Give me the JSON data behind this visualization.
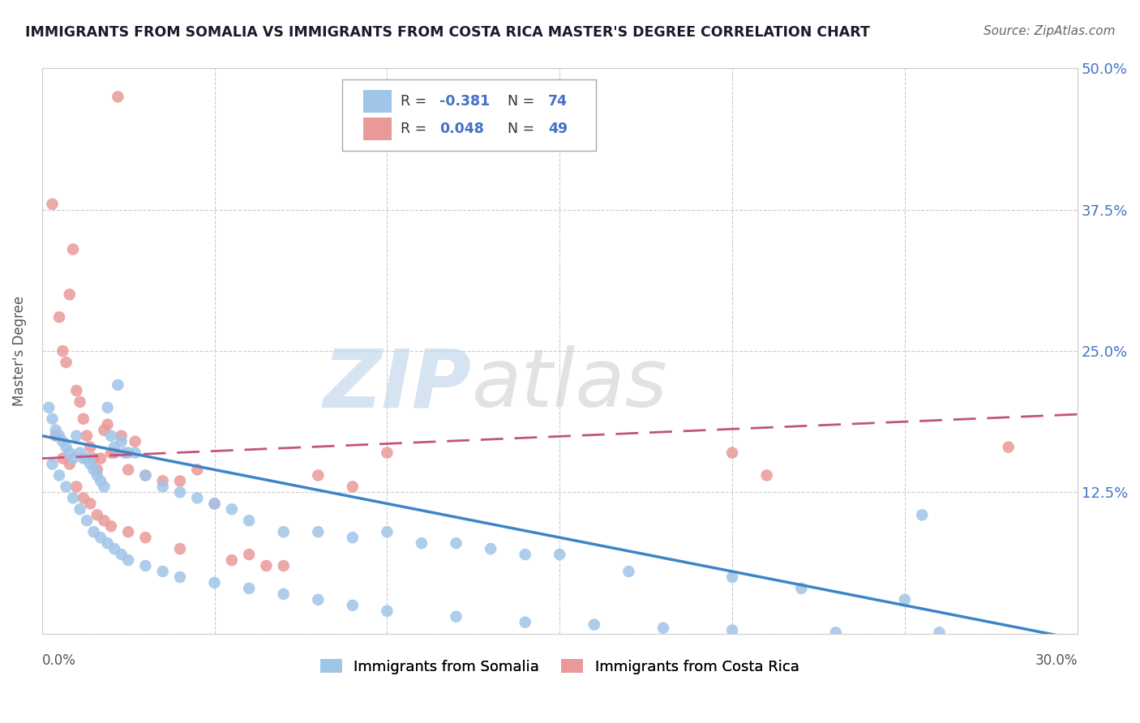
{
  "title": "IMMIGRANTS FROM SOMALIA VS IMMIGRANTS FROM COSTA RICA MASTER'S DEGREE CORRELATION CHART",
  "source": "Source: ZipAtlas.com",
  "ylabel": "Master's Degree",
  "watermark": "ZIPatlas",
  "xlim": [
    0.0,
    0.3
  ],
  "ylim": [
    0.0,
    0.5
  ],
  "yticks": [
    0.0,
    0.125,
    0.25,
    0.375,
    0.5
  ],
  "right_ytick_labels": [
    "",
    "12.5%",
    "25.0%",
    "37.5%",
    "50.0%"
  ],
  "somalia_color": "#9fc5e8",
  "costa_rica_color": "#ea9999",
  "somalia_line_color": "#3d85c8",
  "costa_rica_line_color": "#c2557a",
  "somalia_intercept": 0.175,
  "somalia_slope": -0.6,
  "costa_rica_intercept": 0.155,
  "costa_rica_slope": 0.13,
  "somalia_points_x": [
    0.002,
    0.003,
    0.004,
    0.005,
    0.006,
    0.007,
    0.008,
    0.009,
    0.01,
    0.011,
    0.012,
    0.013,
    0.014,
    0.015,
    0.016,
    0.017,
    0.018,
    0.019,
    0.02,
    0.021,
    0.022,
    0.023,
    0.024,
    0.025,
    0.027,
    0.03,
    0.035,
    0.04,
    0.045,
    0.05,
    0.055,
    0.06,
    0.07,
    0.08,
    0.09,
    0.1,
    0.11,
    0.12,
    0.13,
    0.14,
    0.15,
    0.17,
    0.2,
    0.22,
    0.25,
    0.003,
    0.005,
    0.007,
    0.009,
    0.011,
    0.013,
    0.015,
    0.017,
    0.019,
    0.021,
    0.023,
    0.025,
    0.03,
    0.035,
    0.04,
    0.05,
    0.06,
    0.07,
    0.08,
    0.09,
    0.1,
    0.12,
    0.14,
    0.16,
    0.18,
    0.2,
    0.23,
    0.26,
    0.255
  ],
  "somalia_points_y": [
    0.2,
    0.19,
    0.18,
    0.175,
    0.17,
    0.165,
    0.16,
    0.155,
    0.175,
    0.16,
    0.155,
    0.155,
    0.15,
    0.145,
    0.14,
    0.135,
    0.13,
    0.2,
    0.175,
    0.165,
    0.22,
    0.17,
    0.16,
    0.16,
    0.16,
    0.14,
    0.13,
    0.125,
    0.12,
    0.115,
    0.11,
    0.1,
    0.09,
    0.09,
    0.085,
    0.09,
    0.08,
    0.08,
    0.075,
    0.07,
    0.07,
    0.055,
    0.05,
    0.04,
    0.03,
    0.15,
    0.14,
    0.13,
    0.12,
    0.11,
    0.1,
    0.09,
    0.085,
    0.08,
    0.075,
    0.07,
    0.065,
    0.06,
    0.055,
    0.05,
    0.045,
    0.04,
    0.035,
    0.03,
    0.025,
    0.02,
    0.015,
    0.01,
    0.008,
    0.005,
    0.003,
    0.001,
    0.001,
    0.105
  ],
  "costa_rica_points_x": [
    0.003,
    0.005,
    0.006,
    0.007,
    0.008,
    0.009,
    0.01,
    0.011,
    0.012,
    0.013,
    0.014,
    0.015,
    0.016,
    0.017,
    0.018,
    0.019,
    0.02,
    0.021,
    0.022,
    0.023,
    0.025,
    0.027,
    0.03,
    0.035,
    0.04,
    0.045,
    0.05,
    0.055,
    0.06,
    0.065,
    0.07,
    0.08,
    0.09,
    0.1,
    0.004,
    0.006,
    0.008,
    0.01,
    0.012,
    0.014,
    0.016,
    0.018,
    0.02,
    0.025,
    0.03,
    0.04,
    0.2,
    0.21,
    0.28
  ],
  "costa_rica_points_y": [
    0.38,
    0.28,
    0.25,
    0.24,
    0.3,
    0.34,
    0.215,
    0.205,
    0.19,
    0.175,
    0.165,
    0.155,
    0.145,
    0.155,
    0.18,
    0.185,
    0.16,
    0.16,
    0.475,
    0.175,
    0.145,
    0.17,
    0.14,
    0.135,
    0.135,
    0.145,
    0.115,
    0.065,
    0.07,
    0.06,
    0.06,
    0.14,
    0.13,
    0.16,
    0.175,
    0.155,
    0.15,
    0.13,
    0.12,
    0.115,
    0.105,
    0.1,
    0.095,
    0.09,
    0.085,
    0.075,
    0.16,
    0.14,
    0.165
  ]
}
